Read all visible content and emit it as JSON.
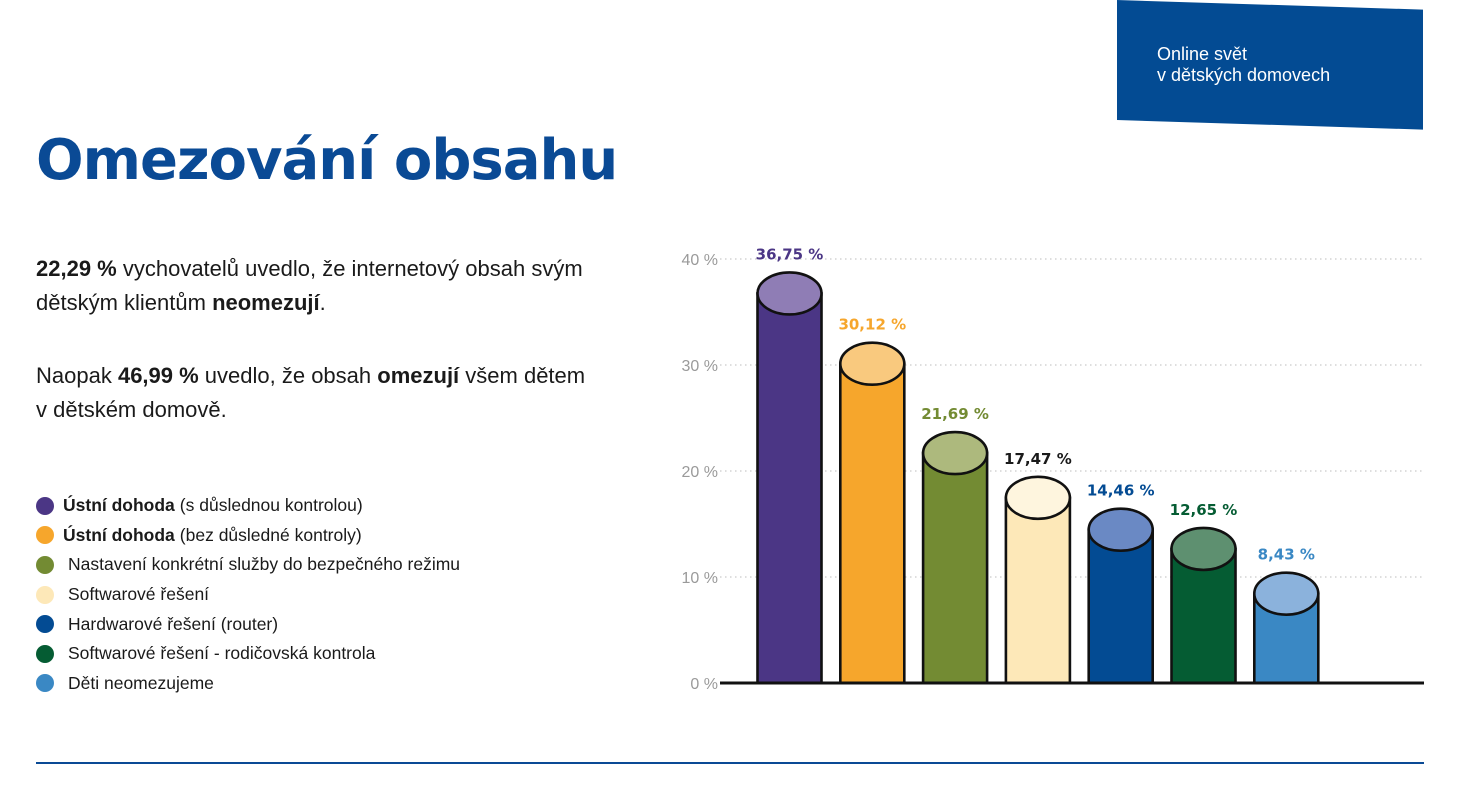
{
  "header": {
    "banner_line1": "Online svět",
    "banner_line2": "v dětských domovech"
  },
  "title": "Omezování obsahu",
  "paragraph1": {
    "value": "22,29 %",
    "text_a": " vychovatelů uvedlo, že internetový obsah svým dětským klientům ",
    "bold_word": "neomezují",
    "text_b": "."
  },
  "paragraph2": {
    "prefix": "Naopak ",
    "value": "46,99 %",
    "text_a": " uvedlo, že obsah ",
    "bold_word": "omezují",
    "text_b": " všem dětem v dětském domově."
  },
  "legend": [
    {
      "bold": "Ústní dohoda",
      "text": "(s důslednou kontrolou)",
      "color": "#4b3685"
    },
    {
      "bold": "Ústní dohoda",
      "text": "(bez důsledné kontroly)",
      "color": "#f6a62c"
    },
    {
      "bold": "",
      "text": "Nastavení konkrétní služby do bezpečného režimu",
      "color": "#738b33"
    },
    {
      "bold": "",
      "text": "Softwarové řešení",
      "color": "#fde8b8"
    },
    {
      "bold": "",
      "text": "Hardwarové řešení (router)",
      "color": "#034b93"
    },
    {
      "bold": "",
      "text": "Softwarové řešení - rodičovská kontrola",
      "color": "#055c33"
    },
    {
      "bold": "",
      "text": "Děti neomezujeme",
      "color": "#3a88c4"
    }
  ],
  "chart_data": {
    "type": "bar",
    "title": "",
    "xlabel": "",
    "ylabel": "",
    "ylim": [
      0,
      40
    ],
    "y_ticks": [
      "0 %",
      "10 %",
      "20 %",
      "30 %",
      "40 %"
    ],
    "y_tick_values": [
      0,
      10,
      20,
      30,
      40
    ],
    "grid": true,
    "categories": [
      "Ústní dohoda (s důslednou kontrolou)",
      "Ústní dohoda (bez důsledné kontroly)",
      "Nastavení konkrétní služby do bezpečného režimu",
      "Softwarové řešení",
      "Hardwarové řešení (router)",
      "Softwarové řešení - rodičovská kontrola",
      "Děti neomezujeme"
    ],
    "values": [
      36.75,
      30.12,
      21.69,
      17.47,
      14.46,
      12.65,
      8.43
    ],
    "labels": [
      "36,75 %",
      "30,12 %",
      "21,69 %",
      "17,47 %",
      "14,46 %",
      "12,65 %",
      "8,43 %"
    ],
    "colors": [
      "#4b3685",
      "#f6a62c",
      "#738b33",
      "#fde8b8",
      "#034b93",
      "#055c33",
      "#3a88c4"
    ],
    "top_colors": [
      "#8f7db5",
      "#f9c97e",
      "#adb97d",
      "#fef5de",
      "#6a89c4",
      "#5e9070",
      "#8bb2dc"
    ],
    "label_colors": [
      "#4b3685",
      "#f6a62c",
      "#738b33",
      "#1a1a1a",
      "#034b93",
      "#055c33",
      "#3a88c4"
    ]
  }
}
